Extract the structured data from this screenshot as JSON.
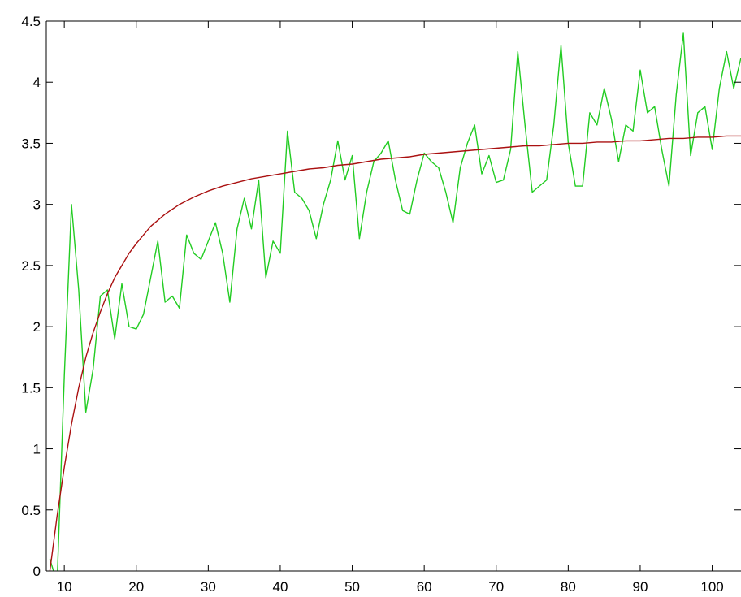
{
  "chart_data": {
    "type": "line",
    "title": "",
    "xlabel": "",
    "ylabel": "",
    "xlim": [
      7.5,
      104
    ],
    "ylim": [
      0,
      4.5
    ],
    "grid": false,
    "legend": "none",
    "x_ticks": [
      10,
      20,
      30,
      40,
      50,
      60,
      70,
      80,
      90,
      100
    ],
    "y_ticks": [
      0,
      0.5,
      1,
      1.5,
      2,
      2.5,
      3,
      3.5,
      4,
      4.5
    ],
    "x_tick_labels": [
      "10",
      "20",
      "30",
      "40",
      "50",
      "60",
      "70",
      "80",
      "90",
      "100"
    ],
    "y_tick_labels": [
      "0",
      "0.5",
      "1",
      "1.5",
      "2",
      "2.5",
      "3",
      "3.5",
      "4",
      "4.5"
    ],
    "series": [
      {
        "color": "#22cc22",
        "x": [
          8,
          9,
          10,
          11,
          12,
          13,
          14,
          15,
          16,
          17,
          18,
          19,
          20,
          21,
          22,
          23,
          24,
          25,
          26,
          27,
          28,
          29,
          30,
          31,
          32,
          33,
          34,
          35,
          36,
          37,
          38,
          39,
          40,
          41,
          42,
          43,
          44,
          45,
          46,
          47,
          48,
          49,
          50,
          51,
          52,
          53,
          54,
          55,
          56,
          57,
          58,
          59,
          60,
          61,
          62,
          63,
          64,
          65,
          66,
          67,
          68,
          69,
          70,
          71,
          72,
          73,
          74,
          75,
          76,
          77,
          78,
          79,
          80,
          81,
          82,
          83,
          84,
          85,
          86,
          87,
          88,
          89,
          90,
          91,
          92,
          93,
          94,
          95,
          96,
          97,
          98,
          99,
          100,
          101,
          102,
          103,
          104
        ],
        "values": [
          0.1,
          -0.1,
          1.6,
          3.0,
          2.3,
          1.3,
          1.65,
          2.25,
          2.3,
          1.9,
          2.35,
          2.0,
          1.98,
          2.1,
          2.4,
          2.7,
          2.2,
          2.25,
          2.15,
          2.75,
          2.6,
          2.55,
          2.7,
          2.85,
          2.6,
          2.2,
          2.8,
          3.05,
          2.8,
          3.2,
          2.4,
          2.7,
          2.6,
          3.6,
          3.1,
          3.05,
          2.95,
          2.72,
          3.0,
          3.2,
          3.52,
          3.2,
          3.4,
          2.72,
          3.1,
          3.35,
          3.42,
          3.52,
          3.2,
          2.95,
          2.92,
          3.2,
          3.42,
          3.35,
          3.3,
          3.1,
          2.85,
          3.3,
          3.5,
          3.65,
          3.25,
          3.4,
          3.18,
          3.2,
          3.45,
          4.25,
          3.65,
          3.1,
          3.15,
          3.2,
          3.65,
          4.3,
          3.5,
          3.15,
          3.15,
          3.75,
          3.65,
          3.95,
          3.7,
          3.35,
          3.65,
          3.6,
          4.1,
          3.75,
          3.8,
          3.45,
          3.15,
          3.9,
          4.4,
          3.4,
          3.75,
          3.8,
          3.45,
          3.95,
          4.25,
          3.95,
          4.2
        ]
      },
      {
        "color": "#aa1111",
        "x": [
          8,
          9,
          10,
          11,
          12,
          13,
          14,
          15,
          16,
          17,
          18,
          19,
          20,
          22,
          24,
          26,
          28,
          30,
          32,
          34,
          36,
          38,
          40,
          42,
          44,
          46,
          48,
          50,
          52,
          54,
          56,
          58,
          60,
          62,
          64,
          66,
          68,
          70,
          72,
          74,
          76,
          78,
          80,
          82,
          84,
          86,
          88,
          90,
          92,
          94,
          96,
          98,
          100,
          102,
          104
        ],
        "values": [
          0.0,
          0.45,
          0.85,
          1.2,
          1.5,
          1.75,
          1.95,
          2.12,
          2.27,
          2.4,
          2.5,
          2.6,
          2.68,
          2.82,
          2.92,
          3.0,
          3.06,
          3.11,
          3.15,
          3.18,
          3.21,
          3.23,
          3.25,
          3.27,
          3.29,
          3.3,
          3.32,
          3.33,
          3.35,
          3.37,
          3.38,
          3.39,
          3.41,
          3.42,
          3.43,
          3.44,
          3.45,
          3.46,
          3.47,
          3.48,
          3.48,
          3.49,
          3.5,
          3.5,
          3.51,
          3.51,
          3.52,
          3.52,
          3.53,
          3.54,
          3.54,
          3.55,
          3.55,
          3.56,
          3.56
        ]
      }
    ]
  }
}
